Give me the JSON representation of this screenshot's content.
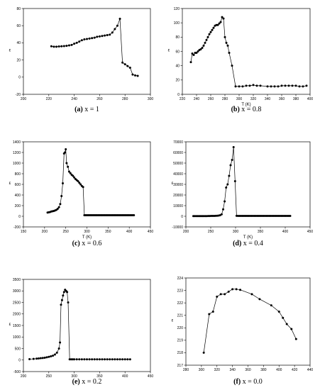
{
  "chart_data": [
    {
      "type": "line",
      "caption_letter": "(a)",
      "caption_text": "x = 1",
      "xlabel": "",
      "ylabel": "ε",
      "xlim": [
        200,
        300
      ],
      "ylim": [
        -20,
        80
      ],
      "xticks": [
        200,
        220,
        240,
        260,
        280,
        300
      ],
      "yticks": [
        -20,
        0,
        20,
        40,
        60,
        80
      ],
      "x": [
        222,
        224,
        226,
        228,
        230,
        232,
        234,
        236,
        238,
        240,
        242,
        244,
        246,
        248,
        250,
        252,
        254,
        256,
        258,
        260,
        262,
        264,
        266,
        268,
        270,
        272,
        274,
        276,
        278,
        280,
        282,
        284,
        286,
        288,
        290
      ],
      "y": [
        36,
        35.5,
        35.5,
        35.8,
        36,
        36.2,
        36.5,
        37,
        37.5,
        39,
        40,
        41.5,
        43,
        44,
        44.5,
        45,
        45.5,
        46,
        47,
        47.5,
        48,
        48.5,
        49,
        49.5,
        52,
        56,
        60,
        68,
        17,
        15,
        13,
        11,
        3,
        2,
        1.5
      ]
    },
    {
      "type": "line",
      "caption_letter": "(b)",
      "caption_text": "x = 0.8",
      "xlabel": "T (K)",
      "ylabel": "ε",
      "xlim": [
        220,
        400
      ],
      "ylim": [
        0,
        120
      ],
      "xticks": [
        220,
        240,
        260,
        280,
        300,
        320,
        340,
        360,
        380,
        400
      ],
      "yticks": [
        0,
        20,
        40,
        60,
        80,
        100,
        120
      ],
      "x": [
        232,
        234,
        236,
        238,
        240,
        242,
        244,
        246,
        248,
        250,
        252,
        254,
        256,
        258,
        260,
        262,
        264,
        266,
        268,
        270,
        272,
        274,
        276,
        278,
        280,
        282,
        284,
        286,
        290,
        295,
        300,
        305,
        310,
        315,
        320,
        325,
        330,
        340,
        345,
        350,
        355,
        360,
        365,
        370,
        375,
        380,
        385,
        390,
        395
      ],
      "y": [
        45,
        57,
        55,
        58,
        58,
        60,
        62,
        63,
        65,
        68,
        72,
        76,
        80,
        84,
        87,
        90,
        93,
        96,
        97,
        97,
        99,
        101,
        108,
        106,
        80,
        72,
        68,
        58,
        40,
        11,
        11,
        11,
        12,
        12,
        13,
        12,
        12,
        11,
        11,
        11,
        11,
        12,
        12,
        12,
        12,
        12,
        11,
        11,
        12
      ]
    },
    {
      "type": "line",
      "caption_letter": "(c)",
      "caption_text": "x = 0.6",
      "xlabel": "T (K)",
      "ylabel": "ε",
      "xlim": [
        150,
        450
      ],
      "ylim": [
        -200,
        1400
      ],
      "xticks": [
        150,
        200,
        250,
        300,
        350,
        400,
        450
      ],
      "yticks": [
        -200,
        0,
        200,
        400,
        600,
        800,
        1000,
        1200,
        1400
      ],
      "x": [
        207,
        210,
        213,
        216,
        219,
        222,
        225,
        228,
        231,
        234,
        237,
        240,
        243,
        246,
        248,
        250,
        252,
        255,
        258,
        261,
        264,
        267,
        270,
        273,
        276,
        279,
        282,
        285,
        288,
        291,
        294,
        297,
        300,
        303,
        306,
        309,
        312,
        315,
        318,
        321,
        324,
        327,
        330,
        333,
        336,
        339,
        342,
        345,
        348,
        351,
        354,
        357,
        360,
        363,
        366,
        369,
        372,
        375,
        378,
        381,
        384,
        387,
        390,
        393,
        396,
        399,
        402,
        405,
        408,
        411
      ],
      "y": [
        70,
        75,
        80,
        90,
        95,
        100,
        110,
        120,
        140,
        170,
        230,
        380,
        620,
        1180,
        1200,
        1260,
        1000,
        930,
        840,
        810,
        780,
        760,
        730,
        700,
        680,
        660,
        630,
        600,
        570,
        550,
        20,
        20,
        20,
        20,
        20,
        20,
        20,
        20,
        20,
        20,
        20,
        20,
        20,
        20,
        20,
        20,
        20,
        20,
        20,
        20,
        20,
        20,
        20,
        20,
        20,
        20,
        20,
        20,
        20,
        20,
        20,
        20,
        20,
        20,
        20,
        20,
        20,
        20,
        20,
        20
      ]
    },
    {
      "type": "line",
      "caption_letter": "(d)",
      "caption_text": "x = 0.4",
      "xlabel": "T (K)",
      "ylabel": "ε",
      "xlim": [
        200,
        450
      ],
      "ylim": [
        -10000,
        70000
      ],
      "xticks": [
        200,
        250,
        300,
        350,
        400,
        450
      ],
      "yticks": [
        -10000,
        0,
        10000,
        20000,
        30000,
        40000,
        50000,
        60000,
        70000
      ],
      "x": [
        215,
        218,
        221,
        224,
        227,
        230,
        233,
        236,
        239,
        242,
        245,
        248,
        251,
        254,
        257,
        260,
        263,
        266,
        269,
        272,
        275,
        278,
        281,
        284,
        287,
        290,
        293,
        296,
        299,
        302,
        305,
        308,
        311,
        314,
        317,
        320,
        323,
        326,
        329,
        332,
        335,
        338,
        341,
        344,
        347,
        350,
        353,
        356,
        359,
        362,
        365,
        368,
        371,
        374,
        377,
        380,
        383,
        386,
        389,
        392,
        395,
        398,
        401,
        404,
        407,
        410
      ],
      "y": [
        200,
        200,
        200,
        200,
        200,
        200,
        200,
        200,
        200,
        200,
        250,
        250,
        300,
        300,
        350,
        400,
        500,
        700,
        1000,
        1800,
        6500,
        14000,
        27000,
        30000,
        38000,
        48000,
        53000,
        65000,
        33000,
        400,
        300,
        300,
        300,
        300,
        300,
        300,
        300,
        300,
        300,
        300,
        300,
        300,
        300,
        300,
        300,
        300,
        300,
        300,
        300,
        300,
        300,
        300,
        300,
        300,
        300,
        300,
        300,
        300,
        300,
        300,
        300,
        300,
        300,
        300,
        300,
        300
      ]
    },
    {
      "type": "line",
      "caption_letter": "(e)",
      "caption_text": "x = 0.2",
      "xlabel": "",
      "ylabel": "ε",
      "xlim": [
        200,
        450
      ],
      "ylim": [
        -500,
        3500
      ],
      "xticks": [
        200,
        250,
        300,
        350,
        400,
        450
      ],
      "yticks": [
        -500,
        0,
        500,
        1000,
        1500,
        2000,
        2500,
        3000,
        3500
      ],
      "x": [
        212,
        220,
        226,
        230,
        234,
        238,
        242,
        246,
        250,
        254,
        258,
        262,
        266,
        270,
        272,
        274,
        276,
        278,
        280,
        282,
        284,
        286,
        288,
        291,
        294,
        297,
        300,
        305,
        310,
        315,
        320,
        325,
        330,
        335,
        340,
        345,
        350,
        355,
        360,
        365,
        370,
        375,
        380,
        385,
        390,
        395,
        400,
        405,
        410
      ],
      "y": [
        40,
        50,
        60,
        70,
        80,
        90,
        100,
        120,
        140,
        160,
        190,
        240,
        320,
        500,
        760,
        2400,
        2600,
        2800,
        2950,
        3050,
        3000,
        2950,
        2500,
        30,
        30,
        30,
        30,
        30,
        30,
        30,
        30,
        30,
        30,
        30,
        30,
        30,
        30,
        30,
        30,
        30,
        30,
        30,
        30,
        30,
        30,
        30,
        30,
        30,
        30
      ]
    },
    {
      "type": "line",
      "caption_letter": "(f)",
      "caption_text": "x = 0.0",
      "xlabel": "",
      "ylabel": "ε",
      "xlim": [
        280,
        440
      ],
      "ylim": [
        217,
        224
      ],
      "xticks": [
        280,
        300,
        320,
        340,
        360,
        380,
        400,
        420,
        440
      ],
      "yticks": [
        217,
        218,
        219,
        220,
        221,
        222,
        223,
        224
      ],
      "x": [
        303,
        310,
        315,
        320,
        325,
        330,
        335,
        340,
        345,
        350,
        365,
        375,
        390,
        400,
        405,
        410,
        416,
        422
      ],
      "y": [
        218,
        221.1,
        221.3,
        222.5,
        222.7,
        222.7,
        222.9,
        223.1,
        223.1,
        223.05,
        222.7,
        222.3,
        221.8,
        221.3,
        220.8,
        220.3,
        219.9,
        219.1
      ]
    }
  ]
}
